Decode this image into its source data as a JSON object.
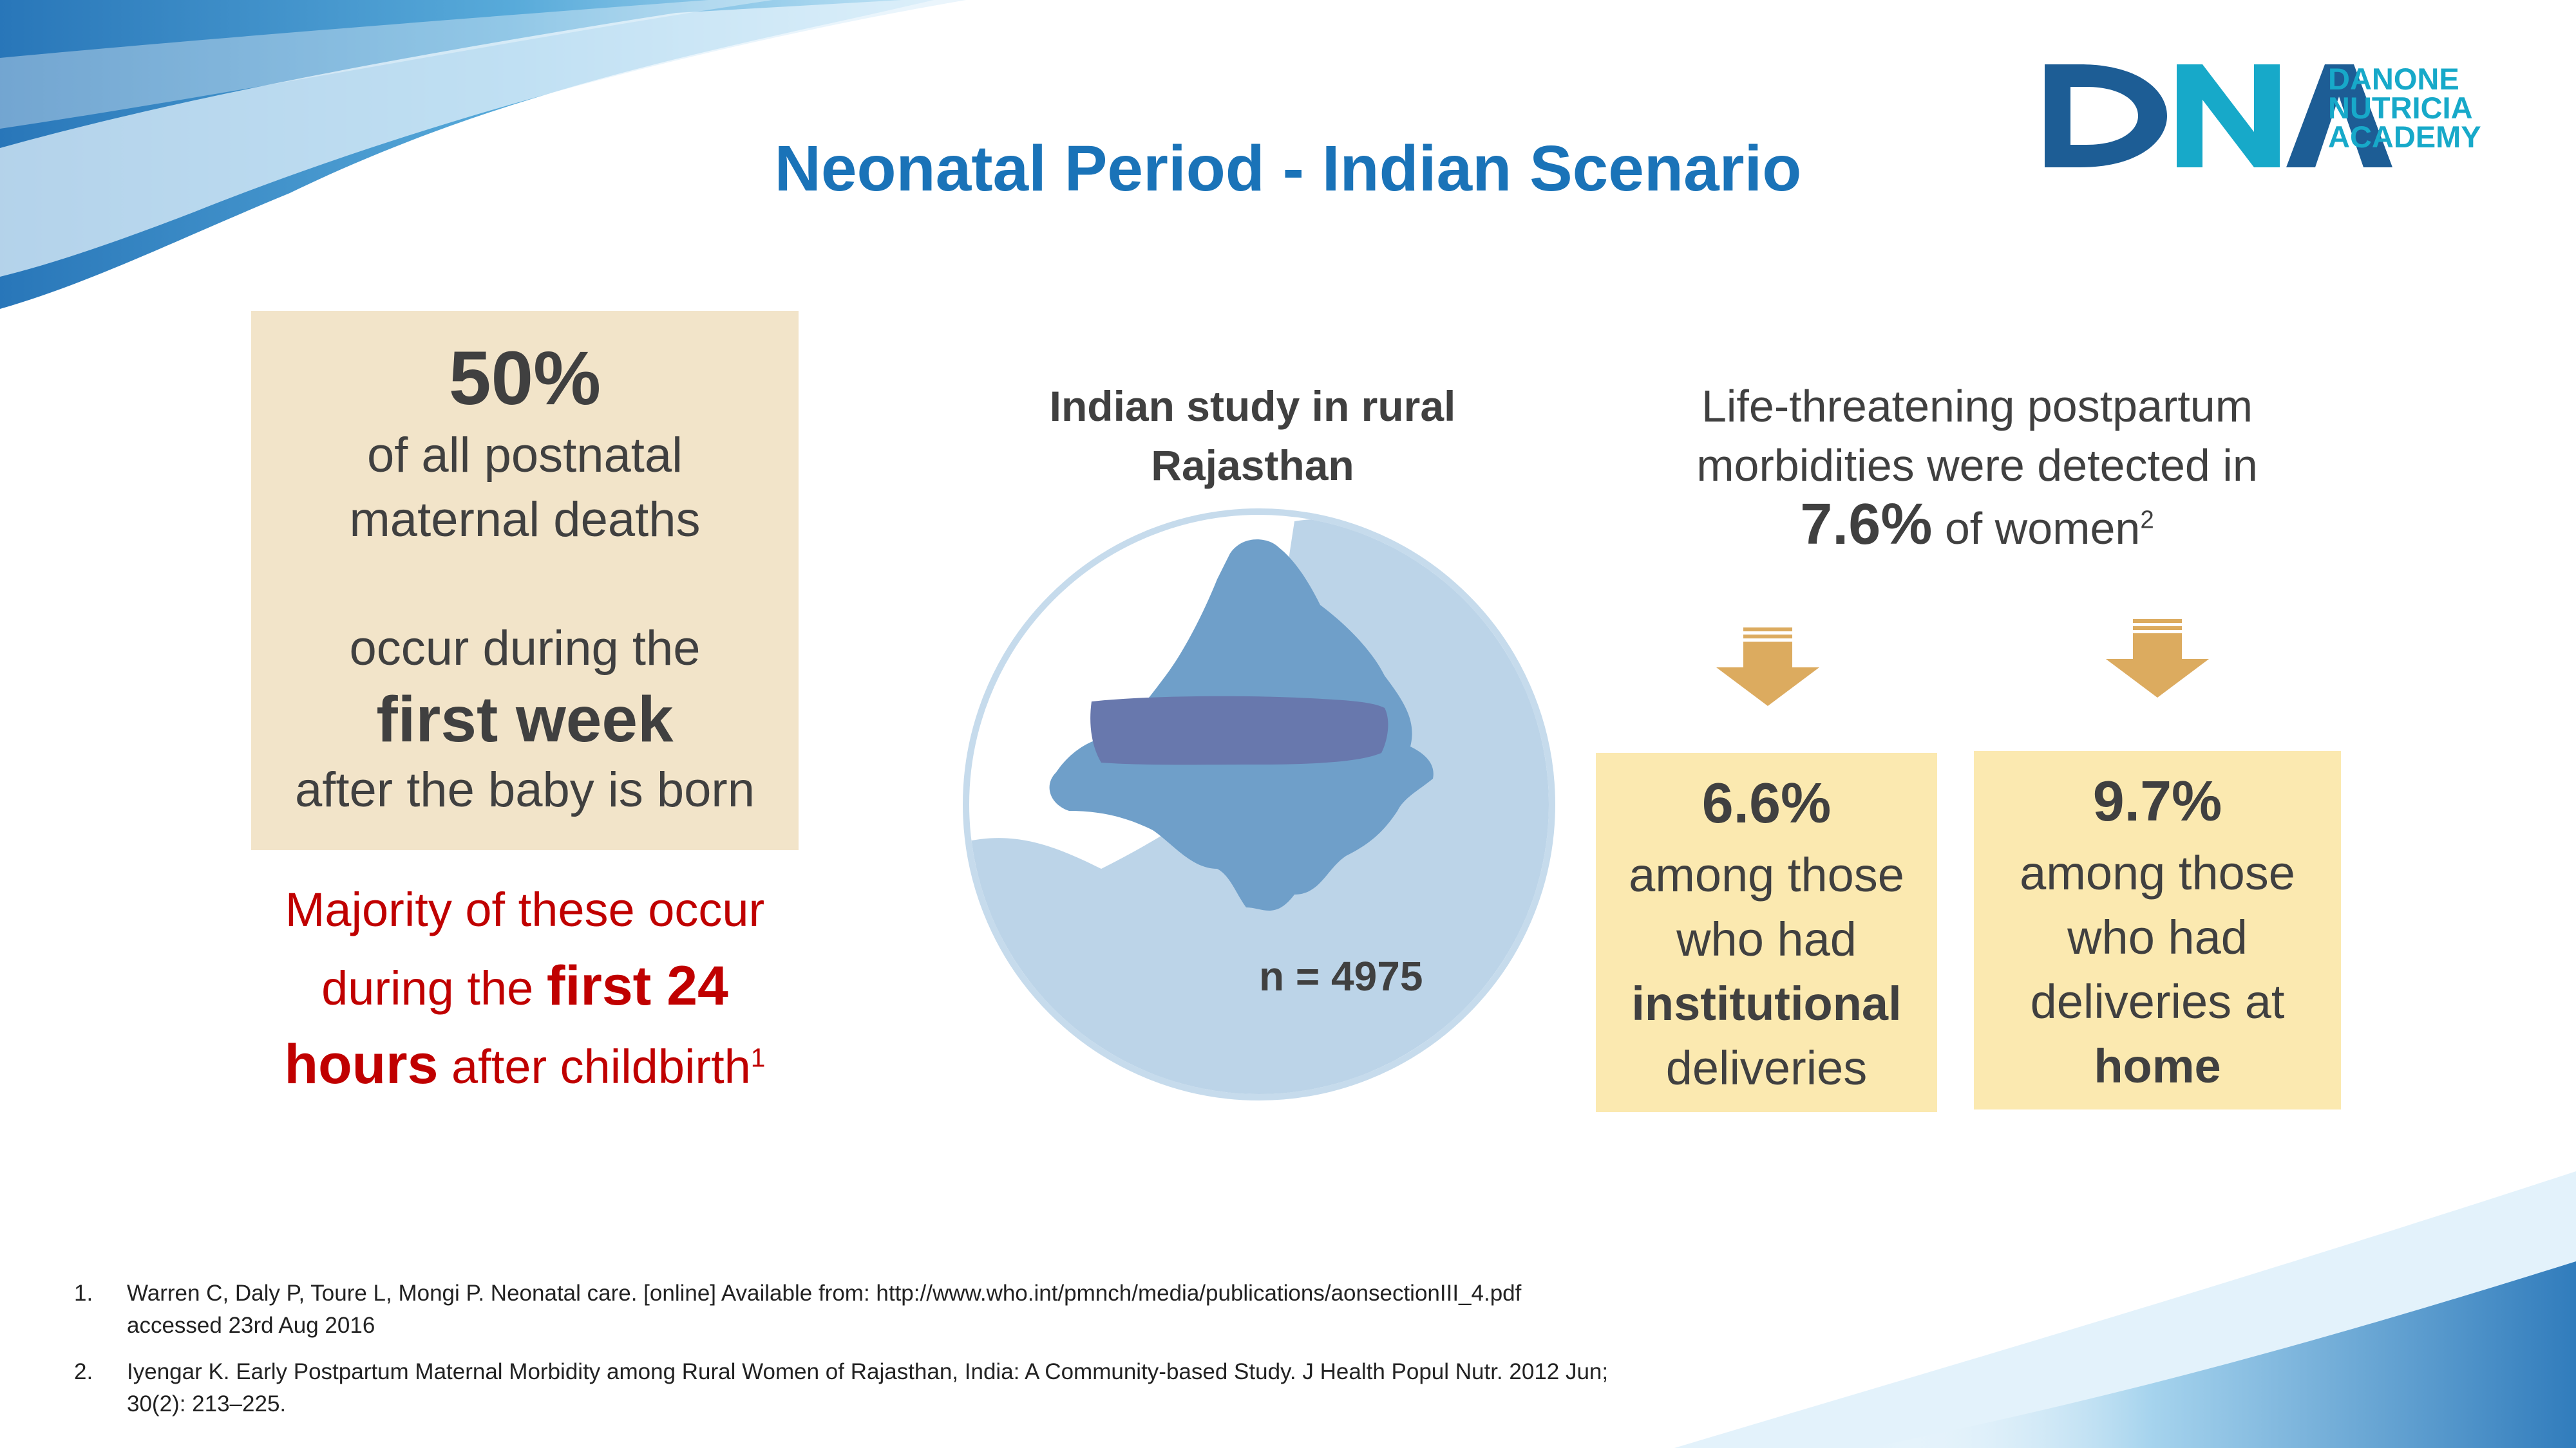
{
  "title": "Neonatal Period - Indian Scenario",
  "logo": {
    "line1": "DANONE",
    "line2": "NUTRICIA",
    "line3": "ACADEMY",
    "mark_text": "DNA"
  },
  "stat_box": {
    "percent": "50%",
    "line1": "of all postnatal",
    "line2": "maternal deaths",
    "line3": "occur during the",
    "emph": "first week",
    "line4": "after the baby is born"
  },
  "majority": {
    "part1": "Majority of these occur",
    "part2": "during the",
    "emph1": "first 24",
    "emph2": "hours",
    "part3": "after childbirth",
    "ref": "1"
  },
  "study": {
    "title_line1": "Indian study in rural",
    "title_line2": "Rajasthan",
    "n_label": "n = 4975"
  },
  "morbidity": {
    "line1": "Life-threatening postpartum",
    "line2": "morbidities were detected in",
    "percent": "7.6%",
    "suffix": "of women",
    "ref": "2"
  },
  "institutional": {
    "percent": "6.6%",
    "line1": "among those",
    "line2": "who had",
    "emph": "institutional",
    "line3": "deliveries"
  },
  "home": {
    "percent": "9.7%",
    "line1": "among those",
    "line2": "who had",
    "line3": "deliveries at",
    "emph": "home"
  },
  "references": [
    {
      "num": "1.",
      "line1": "Warren C, Daly P, Toure L, Mongi P. Neonatal care.  [online] Available from: http://www.who.int/pmnch/media/publications/aonsectionIII_4.pdf",
      "line2": "accessed 23rd Aug 2016"
    },
    {
      "num": "2.",
      "line1": "Iyengar K. Early Postpartum Maternal Morbidity among Rural Women of Rajasthan, India: A Community-based Study. J Health Popul Nutr. 2012 Jun;",
      "line2": "30(2): 213–225."
    }
  ],
  "colors": {
    "title": "#1a73b8",
    "logo_dark": "#1d5d95",
    "logo_light": "#17a9c9",
    "stat_box": "#f2e4c9",
    "highlight_red": "#c00000",
    "result_box": "#fbe9b0",
    "arrow": "#dcab5f"
  }
}
